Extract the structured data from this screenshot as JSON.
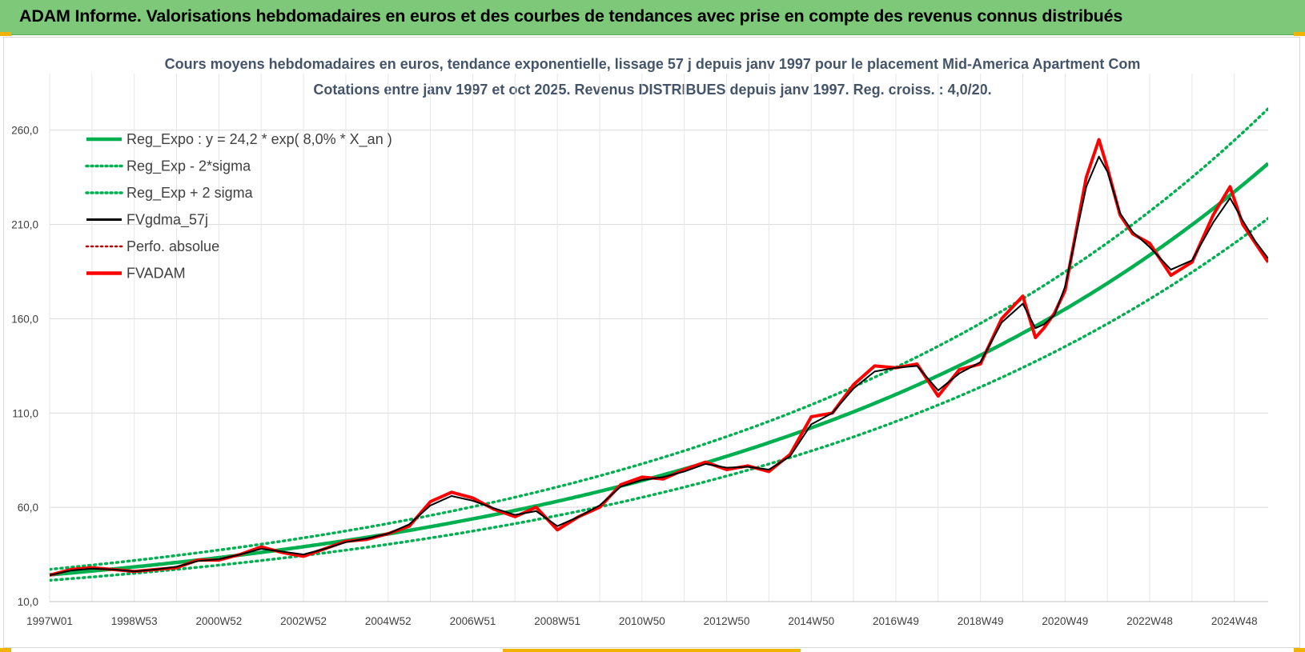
{
  "banner": {
    "title": "ADAM Informe. Valorisations hebdomadaires en euros et des courbes de tendances avec prise en compte des revenus connus distribués"
  },
  "colors": {
    "banner_bg": "#7ec87a",
    "accent_corners": "#f0b400",
    "trend": "#00b050",
    "smoothed": "#000000",
    "price": "#ff0000",
    "perfo": "#c00000",
    "grid": "#d9d9d9"
  },
  "chart_data": {
    "type": "line",
    "title": "Cours moyens hebdomadaires en euros, tendance exponentielle, lissage 57 j depuis janv 1997 pour le placement Mid-America Apartment Com",
    "subtitle": "Cotations entre janv 1997 et oct 2025. Revenus DISTRIBUES depuis janv 1997. Reg. croiss. : 4,0/20.",
    "xlabel": "",
    "ylabel": "",
    "x_range": [
      1997.0,
      2025.8
    ],
    "ylim": [
      10,
      290
    ],
    "y_ticks": [
      10,
      60,
      110,
      160,
      210,
      260
    ],
    "y_tick_labels": [
      "10,0",
      "60,0",
      "110,0",
      "160,0",
      "210,0",
      "260,0"
    ],
    "x_ticks": [
      {
        "label": "1997W01",
        "x": 1997.0
      },
      {
        "label": "1998W53",
        "x": 1999.0
      },
      {
        "label": "2000W52",
        "x": 2001.0
      },
      {
        "label": "2002W52",
        "x": 2003.0
      },
      {
        "label": "2004W52",
        "x": 2005.0
      },
      {
        "label": "2006W51",
        "x": 2007.0
      },
      {
        "label": "2008W51",
        "x": 2009.0
      },
      {
        "label": "2010W50",
        "x": 2011.0
      },
      {
        "label": "2012W50",
        "x": 2013.0
      },
      {
        "label": "2014W50",
        "x": 2015.0
      },
      {
        "label": "2016W49",
        "x": 2017.0
      },
      {
        "label": "2018W49",
        "x": 2019.0
      },
      {
        "label": "2020W49",
        "x": 2021.0
      },
      {
        "label": "2022W48",
        "x": 2023.0
      },
      {
        "label": "2024W48",
        "x": 2025.0
      }
    ],
    "grid": true,
    "legend_position": "top-left",
    "regression": {
      "a": 24.2,
      "rate": 0.08,
      "sigma_factor": 0.12
    },
    "legend": [
      {
        "key": "reg_expo",
        "label": "Reg_Expo : y = 24,2 * exp( 8,0% *  X_an )",
        "color": "#00b050",
        "style": "solid"
      },
      {
        "key": "reg_minus",
        "label": "Reg_Exp - 2*sigma",
        "color": "#00b050",
        "style": "dotted"
      },
      {
        "key": "reg_plus",
        "label": "Reg_Exp + 2 sigma",
        "color": "#00b050",
        "style": "dotted"
      },
      {
        "key": "fvgdma",
        "label": "FVgdma_57j",
        "color": "#000000",
        "style": "solid"
      },
      {
        "key": "perfo",
        "label": "Perfo. absolue",
        "color": "#c00000",
        "style": "dotted"
      },
      {
        "key": "fvadam",
        "label": "FVADAM",
        "color": "#ff0000",
        "style": "solid"
      }
    ],
    "series": [
      {
        "name": "FVADAM",
        "x": [
          1997.0,
          1997.5,
          1998.0,
          1998.5,
          1999.0,
          1999.5,
          2000.0,
          2000.5,
          2001.0,
          2001.5,
          2002.0,
          2002.5,
          2003.0,
          2003.5,
          2004.0,
          2004.5,
          2005.0,
          2005.5,
          2006.0,
          2006.5,
          2007.0,
          2007.5,
          2008.0,
          2008.5,
          2009.0,
          2009.5,
          2010.0,
          2010.5,
          2011.0,
          2011.5,
          2012.0,
          2012.5,
          2013.0,
          2013.5,
          2014.0,
          2014.5,
          2015.0,
          2015.5,
          2016.0,
          2016.5,
          2017.0,
          2017.5,
          2018.0,
          2018.5,
          2019.0,
          2019.5,
          2020.0,
          2020.3,
          2020.5,
          2020.75,
          2021.0,
          2021.5,
          2021.8,
          2022.0,
          2022.3,
          2022.6,
          2023.0,
          2023.5,
          2024.0,
          2024.5,
          2024.9,
          2025.2,
          2025.5,
          2025.8
        ],
        "values": [
          24,
          27,
          28,
          27,
          26,
          27,
          28,
          32,
          32,
          35,
          39,
          36,
          34,
          38,
          42,
          43,
          46,
          50,
          63,
          68,
          65,
          59,
          55,
          60,
          48,
          55,
          60,
          72,
          76,
          75,
          80,
          84,
          80,
          82,
          79,
          88,
          108,
          110,
          125,
          135,
          134,
          136,
          119,
          133,
          136,
          160,
          172,
          150,
          155,
          163,
          175,
          235,
          255,
          240,
          215,
          205,
          200,
          183,
          190,
          215,
          230,
          210,
          200,
          190
        ]
      },
      {
        "name": "FVgdma_57j",
        "x": [
          1997.0,
          1997.5,
          1998.0,
          1998.5,
          1999.0,
          1999.5,
          2000.0,
          2000.5,
          2001.0,
          2001.5,
          2002.0,
          2002.5,
          2003.0,
          2003.5,
          2004.0,
          2004.5,
          2005.0,
          2005.5,
          2006.0,
          2006.5,
          2007.0,
          2007.5,
          2008.0,
          2008.5,
          2009.0,
          2009.5,
          2010.0,
          2010.5,
          2011.0,
          2011.5,
          2012.0,
          2012.5,
          2013.0,
          2013.5,
          2014.0,
          2014.5,
          2015.0,
          2015.5,
          2016.0,
          2016.5,
          2017.0,
          2017.5,
          2018.0,
          2018.5,
          2019.0,
          2019.5,
          2020.0,
          2020.3,
          2020.5,
          2020.75,
          2021.0,
          2021.5,
          2021.8,
          2022.0,
          2022.3,
          2022.6,
          2023.0,
          2023.5,
          2024.0,
          2024.5,
          2024.9,
          2025.2,
          2025.5,
          2025.8
        ],
        "values": [
          24,
          26.5,
          27.5,
          27,
          26,
          27,
          28.5,
          31.5,
          32.5,
          35,
          38,
          36.5,
          35,
          38,
          41.5,
          43.5,
          46,
          51,
          61,
          66,
          63.5,
          59.5,
          56,
          58,
          50,
          55,
          61,
          71,
          74.5,
          76,
          79,
          83,
          81,
          81.5,
          80,
          87,
          104,
          110,
          123,
          132,
          134,
          135,
          122,
          131,
          137,
          158,
          168,
          155,
          157,
          162,
          177,
          230,
          246,
          238,
          216,
          206,
          198,
          186,
          191,
          211,
          224,
          212,
          201,
          192
        ]
      }
    ]
  }
}
